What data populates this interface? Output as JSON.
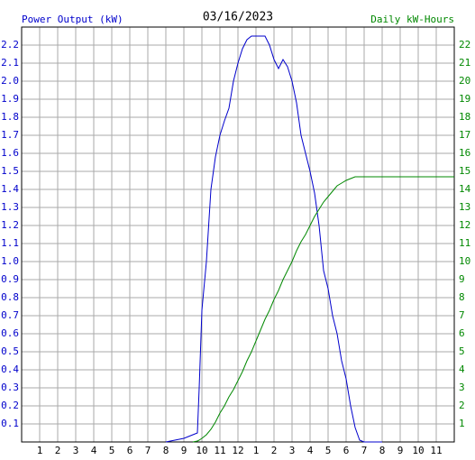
{
  "chart_data": {
    "type": "line",
    "title": "03/16/2023",
    "y_label": "Power Output (kW)",
    "y2_label": "Daily kW-Hours",
    "x": [
      8,
      8.5,
      9,
      9.5,
      9.75,
      9.85,
      10,
      10.25,
      10.5,
      10.75,
      11,
      11.25,
      11.5,
      11.75,
      12,
      12.25,
      12.5,
      12.75,
      13,
      13.5,
      13.75,
      14,
      14.25,
      14.5,
      14.75,
      15,
      15.25,
      15.5,
      15.75,
      16,
      16.25,
      16.5,
      16.75,
      17,
      17.25,
      17.5,
      17.75,
      18,
      18.25,
      18.5,
      18.75,
      19,
      20,
      21,
      22,
      23,
      24
    ],
    "series": [
      {
        "name": "Power Output (kW)",
        "color": "#0000cc",
        "values": [
          0,
          0.01,
          0.02,
          0.04,
          0.05,
          0.3,
          0.73,
          1.0,
          1.4,
          1.58,
          1.7,
          1.78,
          1.85,
          2.0,
          2.1,
          2.18,
          2.23,
          2.25,
          2.25,
          2.25,
          2.2,
          2.12,
          2.07,
          2.12,
          2.08,
          2.0,
          1.88,
          1.7,
          1.6,
          1.5,
          1.38,
          1.2,
          0.95,
          0.85,
          0.7,
          0.6,
          0.45,
          0.35,
          0.2,
          0.08,
          0.01,
          0,
          0,
          null,
          null,
          null,
          null
        ]
      },
      {
        "name": "Daily kW-Hours",
        "color": "#008800",
        "axis": "y2",
        "values": [
          null,
          null,
          null,
          0,
          0.05,
          0.1,
          0.2,
          0.4,
          0.7,
          1.1,
          1.6,
          2.0,
          2.5,
          2.9,
          3.4,
          3.9,
          4.5,
          5.0,
          5.6,
          6.8,
          7.3,
          7.9,
          8.4,
          9.0,
          9.5,
          10.0,
          10.6,
          11.1,
          11.5,
          12.0,
          12.5,
          12.9,
          13.3,
          13.6,
          13.9,
          14.2,
          14.35,
          14.5,
          14.6,
          14.7,
          14.7,
          14.7,
          14.7,
          14.7,
          14.7,
          14.7,
          14.7
        ]
      }
    ],
    "xlim": [
      0,
      24
    ],
    "xticks": [
      1,
      2,
      3,
      4,
      5,
      6,
      7,
      8,
      9,
      10,
      11,
      12,
      {
        "value": 13,
        "label": "1"
      },
      {
        "value": 14,
        "label": "2"
      },
      {
        "value": 15,
        "label": "3"
      },
      {
        "value": 16,
        "label": "4"
      },
      {
        "value": 17,
        "label": "5"
      },
      {
        "value": 18,
        "label": "6"
      },
      {
        "value": 19,
        "label": "7"
      },
      {
        "value": 20,
        "label": "8"
      },
      {
        "value": 21,
        "label": "9"
      },
      {
        "value": 22,
        "label": "10"
      },
      {
        "value": 23,
        "label": "11"
      }
    ],
    "ylim": [
      0,
      2.3
    ],
    "yticks": [
      0.1,
      0.2,
      0.3,
      0.4,
      0.5,
      0.6,
      0.7,
      0.8,
      0.9,
      {
        "value": 1,
        "label": "1.0"
      },
      1.1,
      1.2,
      1.3,
      1.4,
      1.5,
      1.6,
      1.7,
      1.8,
      1.9,
      {
        "value": 2,
        "label": "2.0"
      },
      2.1,
      2.2
    ],
    "y2lim": [
      0,
      23
    ],
    "y2ticks": [
      1,
      2,
      3,
      4,
      5,
      6,
      7,
      8,
      9,
      10,
      11,
      12,
      13,
      14,
      15,
      16,
      17,
      18,
      19,
      20,
      21,
      22
    ],
    "grid": true
  }
}
